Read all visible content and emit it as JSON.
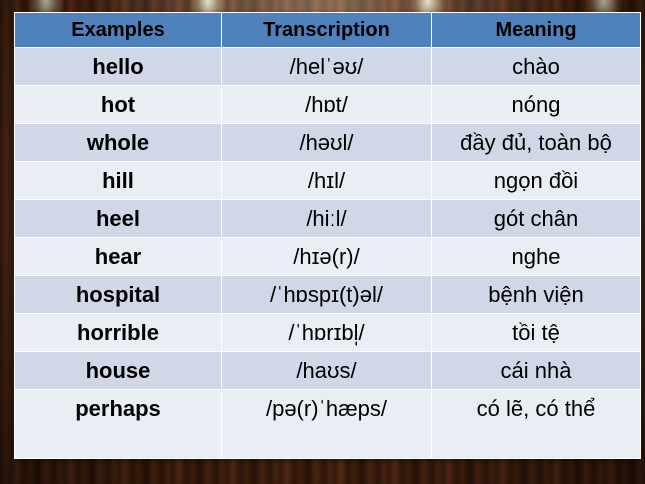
{
  "headers": [
    "Examples",
    "Transcription",
    "Meaning"
  ],
  "rows": [
    {
      "example": "hello",
      "transcription": "/helˈəʊ/",
      "meaning": "chào"
    },
    {
      "example": "hot",
      "transcription": "/hɒt/",
      "meaning": "nóng"
    },
    {
      "example": "whole",
      "transcription": "/həʊl/",
      "meaning": "đầy đủ, toàn bộ"
    },
    {
      "example": "hill",
      "transcription": "/hɪl/",
      "meaning": "ngọn đồi"
    },
    {
      "example": "heel",
      "transcription": "/hiːl/",
      "meaning": "gót chân"
    },
    {
      "example": "hear",
      "transcription": "/hɪə(r)/",
      "meaning": "nghe"
    },
    {
      "example": "hospital",
      "transcription": "/ˈhɒspɪ(t)əl/",
      "meaning": "bệnh viện"
    },
    {
      "example": "horrible",
      "transcription": "/ˈhɒrɪbl̩/",
      "meaning": "tồi tệ"
    },
    {
      "example": "house",
      "transcription": "/haʊs/",
      "meaning": "cái nhà"
    },
    {
      "example": "perhaps",
      "transcription": "/pə(r)ˈhæps/",
      "meaning": "có lẽ, có thể"
    }
  ],
  "colors": {
    "header": "#4f81bd",
    "row_odd": "#d0d8e8",
    "row_even": "#e9edf4",
    "background": "#4a2410"
  }
}
